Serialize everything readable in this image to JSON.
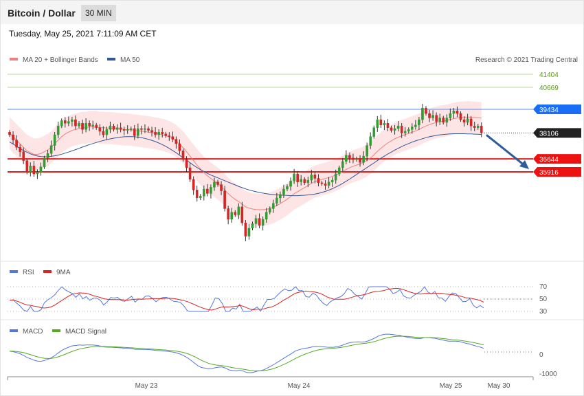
{
  "header": {
    "title": "Bitcoin / Dollar",
    "timeframe": "30 MIN",
    "date": "Tuesday, May 25, 2021 7:11:09 AM CET"
  },
  "price_panel": {
    "legend": [
      {
        "label": "MA 20 + Bollinger Bands",
        "color": "#f08080"
      },
      {
        "label": "MA 50",
        "color": "#335599"
      }
    ],
    "credit": "Research © 2021 Trading Central",
    "levels": [
      {
        "value": 41404,
        "label": "41404",
        "color": "#8fbc5a",
        "kind": "line-text"
      },
      {
        "value": 40669,
        "label": "40669",
        "color": "#8fbc5a",
        "kind": "line-text"
      },
      {
        "value": 39434,
        "label": "39434",
        "color": "#1a6ef5",
        "kind": "tag"
      },
      {
        "value": 38106,
        "label": "38106",
        "color": "#222222",
        "kind": "tag"
      },
      {
        "value": 36644,
        "label": "36644",
        "color": "#ee1111",
        "kind": "tag"
      },
      {
        "value": 35916,
        "label": "35916",
        "color": "#ee1111",
        "kind": "tag"
      }
    ]
  },
  "rsi_panel": {
    "legend": [
      {
        "label": "RSI",
        "color": "#5577dd"
      },
      {
        "label": "9MA",
        "color": "#dd2222"
      }
    ],
    "ticks": [
      "70",
      "50",
      "30"
    ]
  },
  "macd_panel": {
    "legend": [
      {
        "label": "MACD",
        "color": "#5577dd"
      },
      {
        "label": "MACD Signal",
        "color": "#55aa22"
      }
    ],
    "ticks": [
      "0",
      "-1000"
    ]
  },
  "x_axis": {
    "labels": [
      "May 23",
      "May 24",
      "May 25",
      "May 30"
    ]
  },
  "chart_data": {
    "type": "candlestick",
    "price_closes": [
      38000,
      37700,
      37300,
      37050,
      36550,
      35900,
      36250,
      35800,
      35900,
      36200,
      36700,
      36950,
      37400,
      38000,
      38500,
      38800,
      38650,
      38750,
      38850,
      38500,
      38650,
      38300,
      38650,
      38500,
      38550,
      38400,
      38200,
      38000,
      38300,
      38500,
      38300,
      38400,
      38300,
      38250,
      38300,
      38350,
      37950,
      38350,
      38300,
      38350,
      38250,
      38150,
      38000,
      38150,
      38050,
      37950,
      37900,
      37750,
      37500,
      37100,
      36600,
      36150,
      35500,
      34900,
      34450,
      34550,
      34950,
      34700,
      35050,
      35350,
      35200,
      34850,
      33850,
      33250,
      33650,
      33500,
      33950,
      33050,
      32300,
      32750,
      33000,
      33300,
      32900,
      33250,
      33650,
      33850,
      34150,
      34450,
      34650,
      34950,
      35100,
      35400,
      35800,
      35350,
      35500,
      35300,
      35450,
      35750,
      35550,
      35300,
      35250,
      35150,
      35350,
      35450,
      35800,
      36150,
      36500,
      36850,
      36700,
      36600,
      36650,
      36450,
      36800,
      37400,
      37900,
      38400,
      38850,
      38550,
      38650,
      38400,
      38250,
      38350,
      38500,
      38100,
      38200,
      38300,
      38450,
      38550,
      38850,
      39500,
      39200,
      38950,
      39100,
      38750,
      38950,
      38700,
      38950,
      39200,
      39350,
      39200,
      38850,
      38700,
      38900,
      38500,
      38400,
      38500,
      38106
    ],
    "ma20": [
      38100,
      37900,
      37700,
      37500,
      37300,
      37100,
      37000,
      36900,
      36900,
      36950,
      37050,
      37150,
      37300,
      37500,
      37700,
      37900,
      38050,
      38150,
      38250,
      38300,
      38350,
      38400,
      38400,
      38450,
      38450,
      38450,
      38400,
      38400,
      38380,
      38380,
      38360,
      38340,
      38320,
      38300,
      38300,
      38280,
      38250,
      38230,
      38200,
      38180,
      38150,
      38120,
      38080,
      38050,
      38000,
      37950,
      37880,
      37780,
      37650,
      37480,
      37280,
      37050,
      36800,
      36550,
      36300,
      36080,
      35880,
      35700,
      35550,
      35400,
      35250,
      35100,
      34900,
      34700,
      34520,
      34360,
      34250,
      34100,
      33950,
      33880,
      33830,
      33800,
      33790,
      33790,
      33810,
      33860,
      33930,
      34020,
      34130,
      34250,
      34380,
      34530,
      34690,
      34800,
      34920,
      35030,
      35150,
      35270,
      35370,
      35430,
      35490,
      35540,
      35600,
      35660,
      35740,
      35830,
      35940,
      36050,
      36150,
      36230,
      36300,
      36360,
      36450,
      36560,
      36700,
      36880,
      37070,
      37240,
      37400,
      37540,
      37660,
      37770,
      37870,
      37940,
      38010,
      38080,
      38150,
      38220,
      38300,
      38400,
      38500,
      38570,
      38640,
      38690,
      38740,
      38770,
      38810,
      38860,
      38910,
      38950,
      38970,
      38980,
      39000,
      38990,
      38970,
      38960,
      38940
    ],
    "ma50": [
      37600,
      37480,
      37360,
      37240,
      37120,
      37020,
      36930,
      36860,
      36810,
      36780,
      36770,
      36770,
      36790,
      36820,
      36860,
      36910,
      36970,
      37030,
      37100,
      37170,
      37240,
      37310,
      37380,
      37450,
      37510,
      37570,
      37630,
      37680,
      37730,
      37770,
      37810,
      37840,
      37870,
      37890,
      37900,
      37900,
      37890,
      37870,
      37840,
      37800,
      37750,
      37690,
      37620,
      37540,
      37450,
      37350,
      37240,
      37120,
      36990,
      36850,
      36710,
      36570,
      36430,
      36290,
      36160,
      36040,
      35930,
      35830,
      35740,
      35660,
      35580,
      35500,
      35420,
      35340,
      35260,
      35180,
      35100,
      35030,
      34960,
      34900,
      34850,
      34800,
      34760,
      34720,
      34690,
      34660,
      34640,
      34620,
      34610,
      34600,
      34590,
      34580,
      34580,
      34580,
      34590,
      34600,
      34620,
      34640,
      34670,
      34710,
      34760,
      34820,
      34890,
      34970,
      35060,
      35160,
      35270,
      35390,
      35510,
      35640,
      35770,
      35900,
      36030,
      36160,
      36290,
      36420,
      36550,
      36680,
      36800,
      36920,
      37030,
      37140,
      37240,
      37340,
      37430,
      37510,
      37590,
      37660,
      37720,
      37780,
      37840,
      37890,
      37930,
      37970,
      38000,
      38020,
      38040,
      38050,
      38060,
      38060,
      38060,
      38060,
      38050,
      38050,
      38040,
      38030,
      38020
    ],
    "bb_half_width": 900,
    "rsi_range": [
      30,
      70
    ],
    "macd_range": [
      -1000,
      1000
    ],
    "projection_from": 38106,
    "projection_to": 35916
  }
}
